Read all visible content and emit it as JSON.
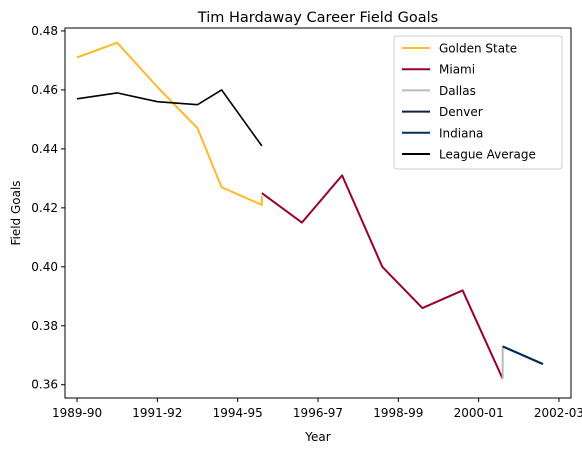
{
  "chart_data": {
    "type": "line",
    "title": "Tim Hardaway Career Field Goals",
    "xlabel": "Year",
    "ylabel": "Field Goals",
    "xlim": [
      1989.7,
      2002.3
    ],
    "ylim": [
      0.3555,
      0.481
    ],
    "x_ticks": [
      {
        "label": "1989-90",
        "value": 1990
      },
      {
        "label": "1991-92",
        "value": 1992
      },
      {
        "label": "1994-95",
        "value": 1994
      },
      {
        "label": "1996-97",
        "value": 1996
      },
      {
        "label": "1998-99",
        "value": 1998
      },
      {
        "label": "2000-01",
        "value": 2000
      },
      {
        "label": "2002-03",
        "value": 2002
      }
    ],
    "y_ticks": [
      {
        "label": "0.36",
        "value": 0.36
      },
      {
        "label": "0.38",
        "value": 0.38
      },
      {
        "label": "0.40",
        "value": 0.4
      },
      {
        "label": "0.42",
        "value": 0.42
      },
      {
        "label": "0.44",
        "value": 0.44
      },
      {
        "label": "0.46",
        "value": 0.46
      },
      {
        "label": "0.48",
        "value": 0.48
      }
    ],
    "grid": false,
    "legend_position": "top-right",
    "series": [
      {
        "name": "Golden State",
        "color": "#FDB927",
        "points": [
          [
            1990,
            0.471
          ],
          [
            1991,
            0.476
          ],
          [
            1992,
            0.461
          ],
          [
            1993,
            0.447
          ],
          [
            1993.6,
            0.427
          ],
          [
            1994.6,
            0.421
          ],
          [
            1994.6,
            0.424
          ]
        ]
      },
      {
        "name": "Miami",
        "color": "#98002E",
        "points": [
          [
            1994.6,
            0.425
          ],
          [
            1995.6,
            0.415
          ],
          [
            1996.6,
            0.431
          ],
          [
            1997.6,
            0.4
          ],
          [
            1998.6,
            0.386
          ],
          [
            1999.6,
            0.392
          ],
          [
            2000.6,
            0.362
          ]
        ]
      },
      {
        "name": "Dallas",
        "color": "#BBBBBB",
        "points": [
          [
            2000.6,
            0.362
          ],
          [
            2000.6,
            0.373
          ]
        ]
      },
      {
        "name": "Denver",
        "color": "#0E2240",
        "points": [
          [
            2000.6,
            0.373
          ],
          [
            2001.6,
            0.367
          ]
        ]
      },
      {
        "name": "Indiana",
        "color": "#002D62",
        "points": [
          [
            2000.6,
            0.373
          ],
          [
            2001.6,
            0.367
          ]
        ]
      },
      {
        "name": "League Average",
        "color": "#000000",
        "points": [
          [
            1990,
            0.457
          ],
          [
            1991,
            0.459
          ],
          [
            1992,
            0.456
          ],
          [
            1993,
            0.455
          ],
          [
            1993.6,
            0.46
          ],
          [
            1994.6,
            0.441
          ]
        ]
      }
    ]
  }
}
